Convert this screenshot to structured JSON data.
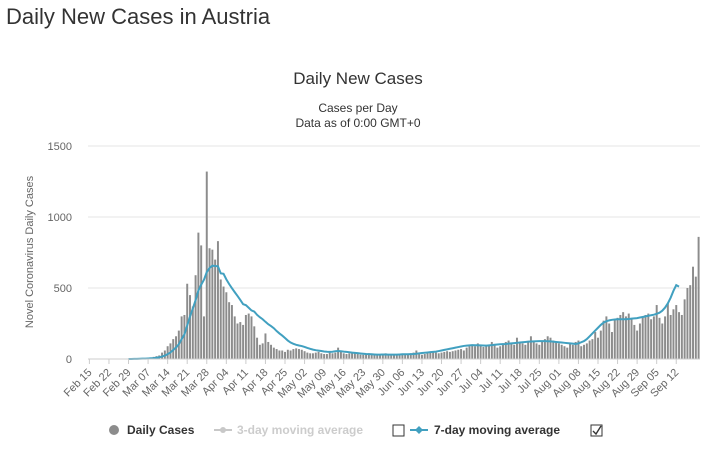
{
  "page": {
    "heading": "Daily New Cases in Austria"
  },
  "colors": {
    "bars": "#8c8c8c",
    "line7": "#41a0c0",
    "line3": "#c8c8c8",
    "grid": "#e6e6e6",
    "text": "#333333",
    "axis": "#666666"
  },
  "chart_data": {
    "type": "bar",
    "title": "Daily New Cases",
    "subtitle": "Cases per Day",
    "subtitle2": "Data as of 0:00 GMT+0",
    "ylabel": "Novel Coronavirus Daily Cases",
    "xlabel": "",
    "ylim": [
      0,
      1500
    ],
    "yticks": [
      0,
      500,
      1000,
      1500
    ],
    "grid": true,
    "x_start": "2020-02-15",
    "xticks": [
      "Feb 15",
      "Feb 22",
      "Feb 29",
      "Mar 07",
      "Mar 14",
      "Mar 21",
      "Mar 28",
      "Apr 04",
      "Apr 11",
      "Apr 18",
      "Apr 25",
      "May 02",
      "May 09",
      "May 16",
      "May 23",
      "May 30",
      "Jun 06",
      "Jun 13",
      "Jun 20",
      "Jun 27",
      "Jul 04",
      "Jul 11",
      "Jul 18",
      "Jul 25",
      "Aug 01",
      "Aug 08",
      "Aug 15",
      "Aug 22",
      "Aug 29",
      "Sep 05",
      "Sep 12"
    ],
    "values": [
      0,
      0,
      0,
      0,
      0,
      0,
      0,
      0,
      0,
      0,
      0,
      0,
      0,
      0,
      2,
      1,
      3,
      2,
      5,
      3,
      3,
      8,
      10,
      15,
      20,
      25,
      45,
      60,
      90,
      110,
      140,
      160,
      200,
      300,
      310,
      530,
      450,
      370,
      590,
      890,
      800,
      300,
      1320,
      780,
      770,
      700,
      830,
      560,
      510,
      470,
      400,
      380,
      300,
      250,
      260,
      240,
      310,
      320,
      300,
      230,
      150,
      100,
      110,
      180,
      120,
      100,
      80,
      70,
      60,
      60,
      50,
      65,
      60,
      70,
      75,
      70,
      65,
      55,
      45,
      40,
      40,
      45,
      50,
      40,
      35,
      35,
      45,
      40,
      45,
      80,
      55,
      40,
      35,
      40,
      50,
      40,
      35,
      30,
      30,
      30,
      40,
      35,
      30,
      28,
      25,
      30,
      40,
      35,
      30,
      25,
      28,
      25,
      30,
      35,
      30,
      40,
      45,
      60,
      35,
      30,
      35,
      40,
      45,
      50,
      45,
      40,
      45,
      50,
      55,
      50,
      55,
      60,
      65,
      70,
      60,
      80,
      90,
      100,
      90,
      110,
      95,
      85,
      90,
      100,
      120,
      100,
      80,
      90,
      110,
      120,
      130,
      110,
      100,
      150,
      120,
      110,
      100,
      120,
      160,
      130,
      110,
      100,
      120,
      140,
      160,
      150,
      130,
      120,
      110,
      100,
      90,
      80,
      110,
      100,
      120,
      130,
      90,
      100,
      110,
      130,
      140,
      190,
      150,
      200,
      270,
      300,
      250,
      190,
      280,
      290,
      310,
      330,
      300,
      320,
      280,
      240,
      200,
      250,
      300,
      310,
      320,
      280,
      300,
      380,
      290,
      250,
      300,
      390,
      310,
      350,
      380,
      330,
      310,
      420,
      500,
      520,
      650,
      580,
      860
    ],
    "ma7": [
      0,
      0,
      0,
      0,
      0,
      0,
      0,
      0,
      0,
      0,
      0,
      0,
      0,
      0,
      0.3,
      0.4,
      0.9,
      1.1,
      1.9,
      2.3,
      2.7,
      3.6,
      4.9,
      6.6,
      9.1,
      12,
      17,
      24,
      34,
      46,
      63,
      81,
      104,
      140,
      173,
      236,
      299,
      355,
      414,
      482,
      523,
      558,
      612,
      641,
      657,
      655,
      653,
      603,
      600,
      561,
      528,
      499,
      471,
      444,
      416,
      386,
      379,
      361,
      342,
      334,
      311,
      294,
      280,
      262,
      245,
      232,
      217,
      197,
      180,
      165,
      148,
      130,
      116,
      107,
      100,
      95,
      91,
      85,
      78,
      72,
      66,
      62,
      59,
      56,
      53,
      51,
      50,
      51,
      55,
      56,
      55,
      52,
      50,
      48,
      45,
      43,
      41,
      39,
      37,
      35,
      34,
      33,
      32,
      31,
      31,
      32,
      32,
      31,
      31,
      31,
      31,
      32,
      33,
      33,
      33,
      34,
      35,
      37,
      40,
      42,
      44,
      46,
      48,
      50,
      52,
      56,
      60,
      64,
      68,
      72,
      76,
      80,
      84,
      88,
      92,
      94,
      96,
      98,
      97,
      97,
      96,
      95,
      94,
      96,
      98,
      100,
      102,
      104,
      105,
      106,
      108,
      110,
      112,
      114,
      116,
      118,
      120,
      122,
      123,
      124,
      125,
      126,
      126,
      126,
      125,
      124,
      122,
      120,
      118,
      116,
      114,
      112,
      110,
      108,
      106,
      110,
      118,
      126,
      140,
      160,
      180,
      200,
      220,
      240,
      256,
      266,
      272,
      276,
      278,
      280,
      280,
      280,
      280,
      282,
      284,
      286,
      288,
      292,
      296,
      300,
      304,
      308,
      312,
      318,
      326,
      340,
      362,
      392,
      432,
      480,
      520,
      510
    ]
  },
  "legend": {
    "daily": "Daily Cases",
    "ma3": "3-day moving average",
    "ma7": "7-day moving average"
  }
}
